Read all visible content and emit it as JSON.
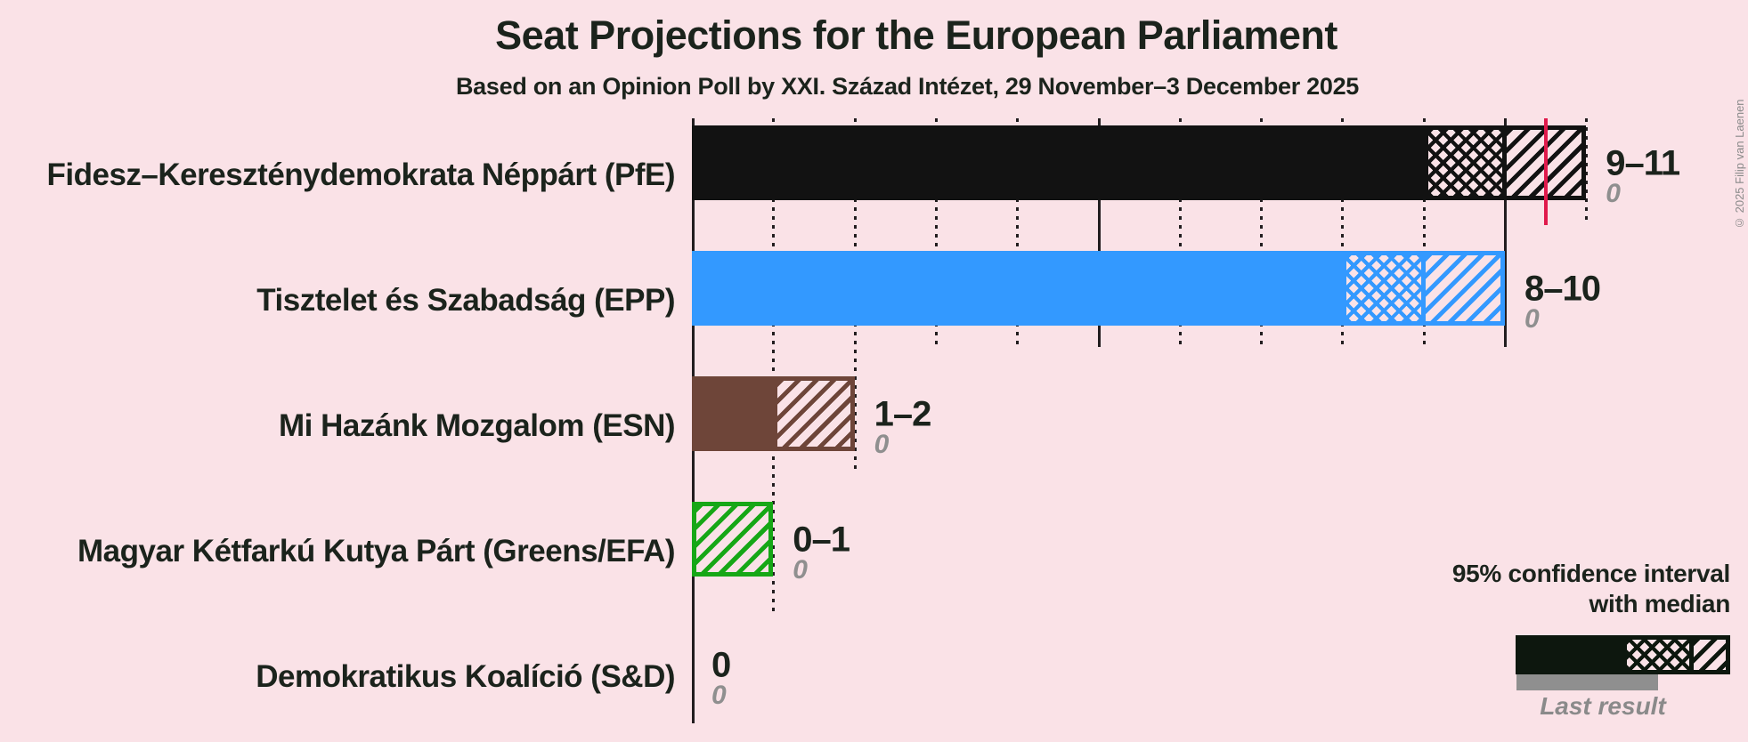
{
  "title": "Seat Projections for the European Parliament",
  "subtitle": "Based on an Opinion Poll by XXI. Század Intézet, 29 November–3 December 2025",
  "copyright": "© 2025 Filip van Laenen",
  "legend": {
    "ci_line1": "95% confidence interval",
    "ci_line2": "with median",
    "last_result_label": "Last result"
  },
  "colors": {
    "background": "#fae2e7",
    "text_dark": "#1b231c",
    "text_gray": "#8f8f8f",
    "gridline": "#221d1f",
    "majority_line": "#e01a4c",
    "legend_sample": "#0d170e",
    "last_result_bar": "#8f8f8f"
  },
  "chart_data": {
    "type": "bar",
    "orientation": "horizontal",
    "title": "Seat Projections for the European Parliament",
    "subtitle": "Based on an Opinion Poll by XXI. Század Intézet, 29 November–3 December 2025",
    "x_axis": {
      "unit": "seats",
      "min": 0,
      "max": 11,
      "solid_gridlines": [
        5,
        10
      ],
      "dotted_gridlines": [
        1,
        2,
        3,
        4,
        6,
        7,
        8,
        9,
        11
      ]
    },
    "majority_line_at": 10.5,
    "parties": [
      {
        "name": "Fidesz–Kereszténydemokrata Néppárt (PfE)",
        "color": "#121212",
        "ci_low": 9,
        "median": 10,
        "ci_high": 11,
        "label": "9–11",
        "last_result": "0"
      },
      {
        "name": "Tisztelet és Szabadság (EPP)",
        "color": "#3399ff",
        "ci_low": 8,
        "median": 9,
        "ci_high": 10,
        "label": "8–10",
        "last_result": "0"
      },
      {
        "name": "Mi Hazánk Mozgalom (ESN)",
        "color": "#6e4539",
        "ci_low": 1,
        "median": 1,
        "ci_high": 2,
        "label": "1–2",
        "last_result": "0"
      },
      {
        "name": "Magyar Kétfarkú Kutya Párt (Greens/EFA)",
        "color": "#16a716",
        "ci_low": 0,
        "median": 0,
        "ci_high": 1,
        "label": "0–1",
        "last_result": "0"
      },
      {
        "name": "Demokratikus Koalíció (S&D)",
        "color": null,
        "ci_low": 0,
        "median": 0,
        "ci_high": 0,
        "label": "0",
        "last_result": "0"
      }
    ]
  }
}
